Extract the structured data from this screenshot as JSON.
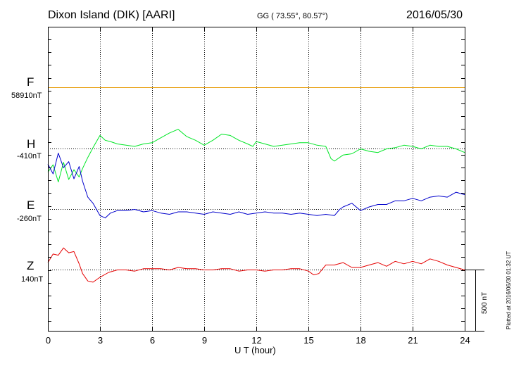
{
  "header": {
    "title": "Dixon Island (DIK)  [AARI]",
    "coords": "GG ( 73.55°,  80.57°)",
    "date": "2016/05/30"
  },
  "footer": {
    "plotted": "Plotted at 2016/06/30 01:32 UT",
    "scale_label": "500 nT"
  },
  "colors": {
    "F": "#e69a00",
    "H": "#00e626",
    "E": "#0000cc",
    "Z": "#e60000"
  },
  "chart_data": {
    "type": "line",
    "xlabel": "U T (hour)",
    "xlim": [
      0,
      24
    ],
    "xticks": [
      0,
      3,
      6,
      9,
      12,
      15,
      18,
      21,
      24
    ],
    "scale_bar_nT": 500,
    "channels": [
      {
        "name": "F",
        "baseline": "58910nT",
        "x": [
          0,
          24
        ],
        "y": [
          0,
          0
        ]
      },
      {
        "name": "H",
        "baseline": "-410nT",
        "x": [
          0,
          0.3,
          0.6,
          0.9,
          1.2,
          1.5,
          1.8,
          2.0,
          2.3,
          2.6,
          3.0,
          3.3,
          3.6,
          4.0,
          4.5,
          5.0,
          5.5,
          6.0,
          6.5,
          7.0,
          7.5,
          8.0,
          8.5,
          9.0,
          9.5,
          10.0,
          10.5,
          11.0,
          11.5,
          11.8,
          12.0,
          12.5,
          13.0,
          13.5,
          14.0,
          14.5,
          15.0,
          15.5,
          16.0,
          16.3,
          16.5,
          17.0,
          17.5,
          18.0,
          18.5,
          19.0,
          19.5,
          20.0,
          20.5,
          21.0,
          21.5,
          22.0,
          22.5,
          23.0,
          23.5,
          24.0
        ],
        "y": [
          -190,
          -130,
          -270,
          -110,
          -250,
          -170,
          -230,
          -160,
          -70,
          10,
          110,
          70,
          60,
          40,
          30,
          20,
          40,
          50,
          90,
          130,
          160,
          100,
          70,
          30,
          70,
          120,
          110,
          70,
          40,
          20,
          60,
          40,
          20,
          30,
          40,
          50,
          50,
          30,
          20,
          -80,
          -100,
          -50,
          -40,
          0,
          -20,
          -30,
          0,
          10,
          30,
          20,
          0,
          30,
          20,
          20,
          0,
          -30
        ]
      },
      {
        "name": "E",
        "baseline": "-260nT",
        "x": [
          0,
          0.3,
          0.6,
          0.9,
          1.2,
          1.5,
          1.8,
          2.0,
          2.3,
          2.6,
          3.0,
          3.3,
          3.6,
          4.0,
          4.5,
          5.0,
          5.5,
          6.0,
          6.5,
          7.0,
          7.5,
          8.0,
          8.5,
          9.0,
          9.5,
          10.0,
          10.5,
          11.0,
          11.5,
          12.0,
          12.5,
          13.0,
          13.5,
          14.0,
          14.5,
          15.0,
          15.5,
          16.0,
          16.5,
          16.8,
          17.0,
          17.5,
          18.0,
          18.5,
          19.0,
          19.5,
          20.0,
          20.5,
          21.0,
          21.5,
          22.0,
          22.5,
          23.0,
          23.5,
          24.0
        ],
        "y": [
          370,
          290,
          460,
          340,
          390,
          250,
          350,
          230,
          100,
          50,
          -50,
          -70,
          -30,
          -10,
          -10,
          0,
          -20,
          -10,
          -30,
          -40,
          -20,
          -20,
          -30,
          -40,
          -20,
          -30,
          -40,
          -20,
          -40,
          -30,
          -20,
          -30,
          -30,
          -40,
          -30,
          -40,
          -50,
          -40,
          -50,
          0,
          20,
          50,
          -10,
          20,
          40,
          40,
          70,
          70,
          90,
          70,
          100,
          110,
          100,
          140,
          120
        ]
      },
      {
        "name": "Z",
        "baseline": "140nT",
        "x": [
          0,
          0.3,
          0.6,
          0.9,
          1.2,
          1.5,
          1.8,
          2.0,
          2.3,
          2.6,
          3.0,
          3.5,
          4.0,
          4.5,
          5.0,
          5.5,
          6.0,
          6.5,
          7.0,
          7.5,
          8.0,
          8.5,
          9.0,
          9.5,
          10.0,
          10.5,
          11.0,
          11.5,
          12.0,
          12.5,
          13.0,
          13.5,
          14.0,
          14.5,
          15.0,
          15.3,
          15.6,
          16.0,
          16.5,
          17.0,
          17.5,
          18.0,
          18.5,
          19.0,
          19.5,
          20.0,
          20.5,
          21.0,
          21.5,
          22.0,
          22.5,
          23.0,
          23.5,
          24.0
        ],
        "y": [
          60,
          130,
          120,
          180,
          140,
          150,
          50,
          -30,
          -90,
          -100,
          -60,
          -20,
          0,
          0,
          -10,
          10,
          10,
          10,
          0,
          20,
          10,
          10,
          0,
          0,
          10,
          10,
          -10,
          0,
          0,
          -10,
          0,
          0,
          10,
          10,
          -10,
          -40,
          -30,
          40,
          40,
          60,
          20,
          20,
          40,
          60,
          30,
          70,
          50,
          70,
          50,
          90,
          70,
          40,
          20,
          0
        ]
      }
    ]
  }
}
